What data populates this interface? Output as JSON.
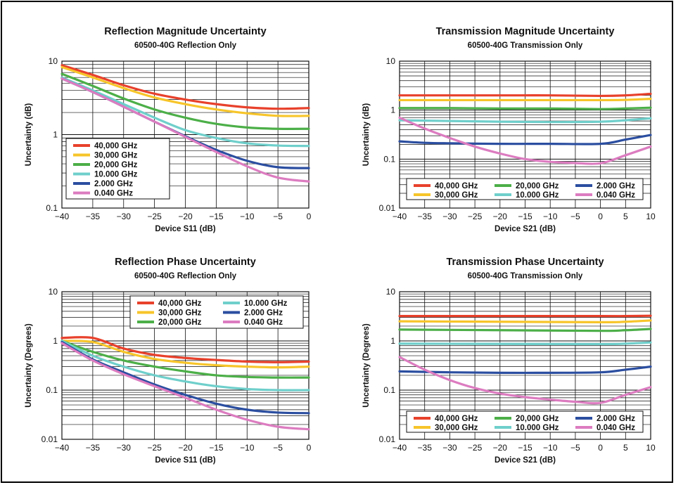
{
  "chart_data": [
    {
      "type": "line",
      "title": "Reflection Magnitude Uncertainty",
      "subtitle": "60500-40G Reflection Only",
      "xlabel": "Device S11 (dB)",
      "ylabel": "Uncertainty (dB)",
      "xlim": [
        -40,
        0
      ],
      "ylim": [
        0.1,
        10
      ],
      "yscale": "log",
      "xticks": [
        -40,
        -35,
        -30,
        -25,
        -20,
        -15,
        -10,
        -5,
        0
      ],
      "xtick_labels": [
        "−40",
        "−35",
        "−30",
        "−25",
        "−20",
        "−15",
        "−10",
        "−5",
        "0"
      ],
      "yticks": [
        0.1,
        1,
        10
      ],
      "ytick_labels": [
        "0.1",
        "1",
        "10"
      ],
      "grid": true,
      "legend_placement": "bottom-left",
      "legend_columns": 1,
      "series": [
        {
          "name": "40,000 GHz",
          "color": "#e8412c",
          "x": [
            -40,
            -35,
            -30,
            -25,
            -20,
            -15,
            -10,
            -5,
            0
          ],
          "y": [
            8.8,
            6.5,
            4.7,
            3.6,
            3.0,
            2.6,
            2.35,
            2.25,
            2.3
          ]
        },
        {
          "name": "30,000 GHz",
          "color": "#f7c52a",
          "x": [
            -40,
            -35,
            -30,
            -25,
            -20,
            -15,
            -10,
            -5,
            0
          ],
          "y": [
            8.3,
            6.0,
            4.3,
            3.2,
            2.6,
            2.2,
            1.95,
            1.8,
            1.8
          ]
        },
        {
          "name": "20,000 GHz",
          "color": "#4caf48",
          "x": [
            -40,
            -35,
            -30,
            -25,
            -20,
            -15,
            -10,
            -5,
            0
          ],
          "y": [
            6.7,
            4.6,
            3.1,
            2.2,
            1.7,
            1.4,
            1.25,
            1.2,
            1.2
          ]
        },
        {
          "name": "10.000 GHz",
          "color": "#6fcfcb",
          "x": [
            -40,
            -35,
            -30,
            -25,
            -20,
            -15,
            -10,
            -5,
            0
          ],
          "y": [
            6.0,
            4.0,
            2.6,
            1.7,
            1.15,
            0.9,
            0.76,
            0.71,
            0.7
          ]
        },
        {
          "name": "2.000 GHz",
          "color": "#2b4ea0",
          "x": [
            -40,
            -35,
            -30,
            -25,
            -20,
            -15,
            -10,
            -5,
            0
          ],
          "y": [
            5.8,
            3.8,
            2.4,
            1.5,
            0.95,
            0.62,
            0.44,
            0.36,
            0.35
          ]
        },
        {
          "name": "0.040 GHz",
          "color": "#dc7cc0",
          "x": [
            -40,
            -35,
            -30,
            -25,
            -20,
            -15,
            -10,
            -5,
            0
          ],
          "y": [
            5.8,
            3.8,
            2.4,
            1.5,
            0.93,
            0.58,
            0.37,
            0.26,
            0.23
          ]
        }
      ]
    },
    {
      "type": "line",
      "title": "Transmission Magnitude Uncertainty",
      "subtitle": "60500-40G Transmission Only",
      "xlabel": "Device S21 (dB)",
      "ylabel": "Uncertainty (dB)",
      "xlim": [
        -40,
        10
      ],
      "ylim": [
        0.01,
        10
      ],
      "yscale": "log",
      "xticks": [
        -40,
        -35,
        -30,
        -25,
        -20,
        -15,
        -10,
        -5,
        0,
        5,
        10
      ],
      "xtick_labels": [
        "−40",
        "−35",
        "−30",
        "−25",
        "−20",
        "−15",
        "−10",
        "−5",
        "0",
        "5",
        "10"
      ],
      "yticks": [
        0.01,
        0.1,
        1,
        10
      ],
      "ytick_labels": [
        "0.01",
        "0.1",
        "1",
        "10"
      ],
      "grid": true,
      "legend_placement": "bottom",
      "legend_columns": 3,
      "series": [
        {
          "name": "40,000 GHz",
          "color": "#e8412c",
          "x": [
            -40,
            -30,
            -20,
            -10,
            0,
            5,
            10
          ],
          "y": [
            2.0,
            2.0,
            2.0,
            2.0,
            1.95,
            2.0,
            2.15
          ]
        },
        {
          "name": "30,000 GHz",
          "color": "#f7c52a",
          "x": [
            -40,
            -30,
            -20,
            -10,
            0,
            5,
            10
          ],
          "y": [
            1.6,
            1.6,
            1.6,
            1.6,
            1.6,
            1.62,
            1.7
          ]
        },
        {
          "name": "20,000 GHz",
          "color": "#4caf48",
          "x": [
            -40,
            -30,
            -20,
            -10,
            0,
            5,
            10
          ],
          "y": [
            1.1,
            1.1,
            1.08,
            1.08,
            1.05,
            1.08,
            1.12
          ]
        },
        {
          "name": "10.000 GHz",
          "color": "#6fcfcb",
          "x": [
            -40,
            -30,
            -20,
            -10,
            0,
            5,
            10
          ],
          "y": [
            0.62,
            0.6,
            0.58,
            0.57,
            0.58,
            0.62,
            0.68
          ]
        },
        {
          "name": "2.000 GHz",
          "color": "#2b4ea0",
          "x": [
            -40,
            -35,
            -30,
            -20,
            -10,
            0,
            5,
            10
          ],
          "y": [
            0.23,
            0.215,
            0.21,
            0.205,
            0.205,
            0.205,
            0.25,
            0.31
          ]
        },
        {
          "name": "0.040 GHz",
          "color": "#dc7cc0",
          "x": [
            -40,
            -35,
            -30,
            -25,
            -20,
            -15,
            -10,
            -5,
            0,
            5,
            10
          ],
          "y": [
            0.7,
            0.42,
            0.27,
            0.18,
            0.13,
            0.1,
            0.088,
            0.083,
            0.082,
            0.12,
            0.18
          ]
        }
      ]
    },
    {
      "type": "line",
      "title": "Reflection Phase Uncertainty",
      "subtitle": "60500-40G  Reflection Only",
      "xlabel": "Device S11 (dB)",
      "ylabel": "Uncertainty (Degrees)",
      "xlim": [
        -40,
        0
      ],
      "ylim": [
        0.01,
        10
      ],
      "yscale": "log",
      "xticks": [
        -40,
        -35,
        -30,
        -25,
        -20,
        -15,
        -10,
        -5,
        0
      ],
      "xtick_labels": [
        "−40",
        "−35",
        "−30",
        "−25",
        "−20",
        "−15",
        "−10",
        "−5",
        "0"
      ],
      "yticks": [
        0.01,
        0.1,
        1,
        10
      ],
      "ytick_labels": [
        "0.01",
        "0.1",
        "1",
        "10"
      ],
      "grid": true,
      "legend_placement": "top-right",
      "legend_columns": 2,
      "series": [
        {
          "name": "40,000 GHz",
          "color": "#e8412c",
          "x": [
            -40,
            -35,
            -30,
            -25,
            -20,
            -15,
            -10,
            -5,
            0
          ],
          "y": [
            1.15,
            1.15,
            0.7,
            0.52,
            0.45,
            0.41,
            0.38,
            0.37,
            0.38
          ]
        },
        {
          "name": "30,000 GHz",
          "color": "#f7c52a",
          "x": [
            -40,
            -35,
            -30,
            -25,
            -20,
            -15,
            -10,
            -5,
            0
          ],
          "y": [
            1.0,
            0.95,
            0.6,
            0.43,
            0.36,
            0.32,
            0.3,
            0.29,
            0.3
          ]
        },
        {
          "name": "20,000 GHz",
          "color": "#4caf48",
          "x": [
            -40,
            -35,
            -30,
            -25,
            -20,
            -15,
            -10,
            -5,
            0
          ],
          "y": [
            1.0,
            0.6,
            0.4,
            0.3,
            0.24,
            0.2,
            0.185,
            0.18,
            0.18
          ]
        },
        {
          "name": "10.000 GHz",
          "color": "#6fcfcb",
          "x": [
            -40,
            -35,
            -30,
            -25,
            -20,
            -15,
            -10,
            -5,
            0
          ],
          "y": [
            1.0,
            0.5,
            0.3,
            0.2,
            0.15,
            0.12,
            0.105,
            0.1,
            0.1
          ]
        },
        {
          "name": "2.000 GHz",
          "color": "#2b4ea0",
          "x": [
            -40,
            -35,
            -30,
            -25,
            -20,
            -15,
            -10,
            -5,
            0
          ],
          "y": [
            0.95,
            0.42,
            0.23,
            0.13,
            0.08,
            0.053,
            0.04,
            0.035,
            0.034
          ]
        },
        {
          "name": "0.040 GHz",
          "color": "#dc7cc0",
          "x": [
            -40,
            -35,
            -30,
            -25,
            -20,
            -15,
            -10,
            -5,
            0
          ],
          "y": [
            0.9,
            0.4,
            0.21,
            0.12,
            0.07,
            0.04,
            0.025,
            0.018,
            0.016
          ]
        }
      ]
    },
    {
      "type": "line",
      "title": "Transmission Phase Uncertainty",
      "subtitle": "60500-40G Transmission Only",
      "xlabel": "Device S21 (dB)",
      "ylabel": "Uncertainty (Degrees)",
      "xlim": [
        -40,
        10
      ],
      "ylim": [
        0.01,
        10
      ],
      "yscale": "log",
      "xticks": [
        -40,
        -35,
        -30,
        -25,
        -20,
        -15,
        -10,
        -5,
        0,
        5,
        10
      ],
      "xtick_labels": [
        "−40",
        "−35",
        "−30",
        "−25",
        "−20",
        "−15",
        "−10",
        "−5",
        "0",
        "5",
        "10"
      ],
      "yticks": [
        0.01,
        0.1,
        1,
        10
      ],
      "ytick_labels": [
        "0.01",
        "0.1",
        "1",
        "10"
      ],
      "grid": true,
      "legend_placement": "bottom",
      "legend_columns": 3,
      "series": [
        {
          "name": "40,000 GHz",
          "color": "#e8412c",
          "x": [
            -40,
            -20,
            0,
            5,
            10
          ],
          "y": [
            3.2,
            3.2,
            3.2,
            3.2,
            3.25
          ]
        },
        {
          "name": "30,000 GHz",
          "color": "#f7c52a",
          "x": [
            -40,
            -20,
            0,
            5,
            10
          ],
          "y": [
            2.5,
            2.45,
            2.4,
            2.45,
            2.6
          ]
        },
        {
          "name": "20,000 GHz",
          "color": "#4caf48",
          "x": [
            -40,
            -20,
            0,
            5,
            10
          ],
          "y": [
            1.7,
            1.65,
            1.6,
            1.65,
            1.75
          ]
        },
        {
          "name": "10.000 GHz",
          "color": "#6fcfcb",
          "x": [
            -40,
            -20,
            0,
            5,
            10
          ],
          "y": [
            0.88,
            0.87,
            0.86,
            0.88,
            0.93
          ]
        },
        {
          "name": "2.000 GHz",
          "color": "#2b4ea0",
          "x": [
            -40,
            -30,
            -20,
            -10,
            0,
            5,
            10
          ],
          "y": [
            0.24,
            0.23,
            0.225,
            0.225,
            0.23,
            0.26,
            0.3
          ]
        },
        {
          "name": "0.040 GHz",
          "color": "#dc7cc0",
          "x": [
            -40,
            -35,
            -30,
            -25,
            -20,
            -15,
            -10,
            -5,
            0,
            5,
            10
          ],
          "y": [
            0.47,
            0.26,
            0.16,
            0.11,
            0.085,
            0.072,
            0.064,
            0.058,
            0.055,
            0.08,
            0.115
          ]
        }
      ]
    }
  ]
}
